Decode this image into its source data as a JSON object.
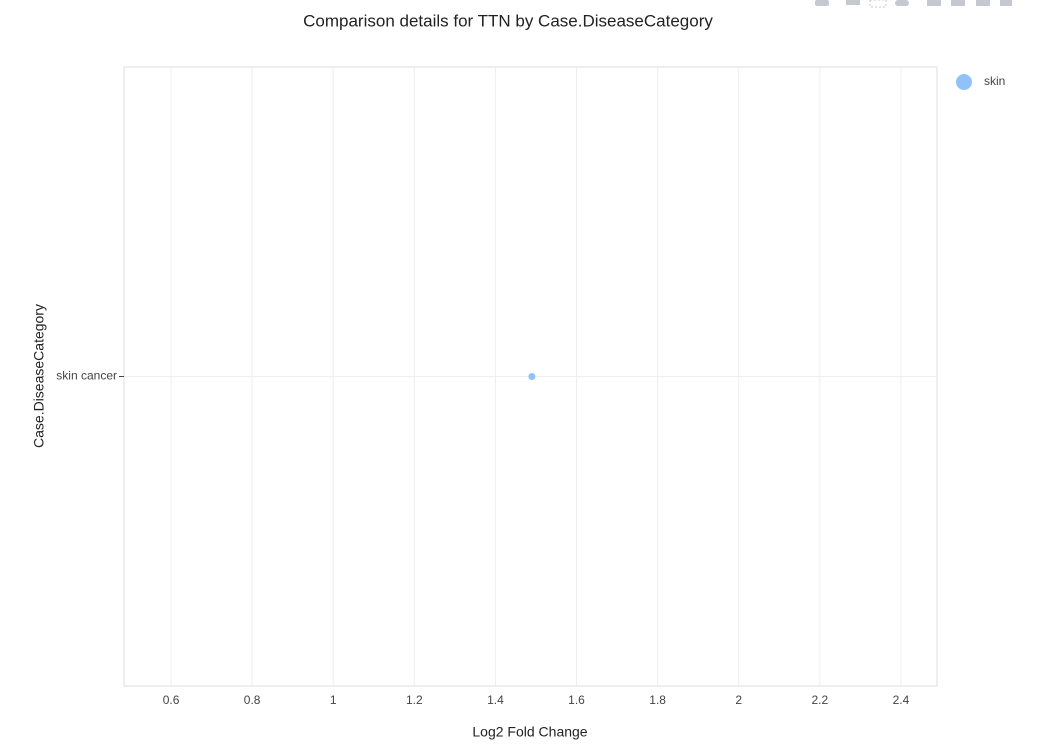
{
  "chart_data": {
    "type": "scatter",
    "orientation": "h",
    "title": "Comparison details for TTN by Case.DiseaseCategory",
    "x_label": "Log2 Fold Change",
    "y_label": "Case.DiseaseCategory",
    "categories": [
      "skin cancer"
    ],
    "series": [
      {
        "name": "skin",
        "color": "#8fc3f7",
        "values": [
          1.49
        ]
      }
    ],
    "xlim": [
      0.484,
      2.489
    ],
    "xticks": [
      0.6,
      0.8,
      1,
      1.2,
      1.4,
      1.6,
      1.8,
      2,
      2.2,
      2.4
    ],
    "grid": true,
    "legend": "top-right"
  }
}
